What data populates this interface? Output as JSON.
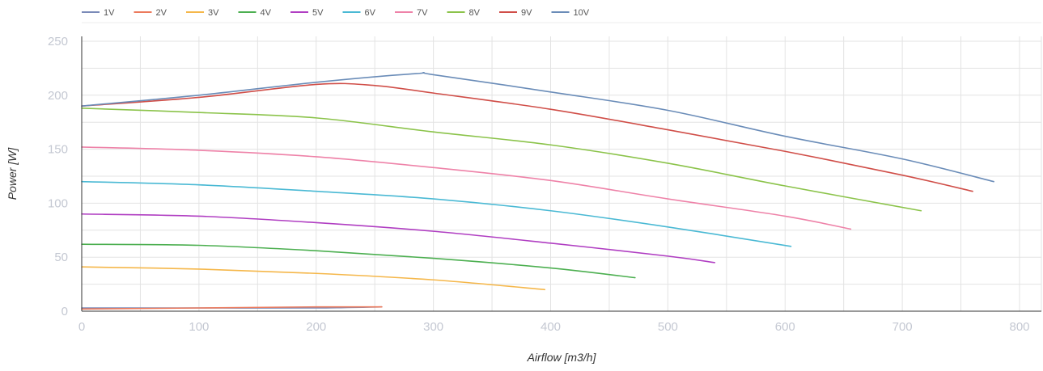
{
  "chart_data": {
    "type": "line",
    "xlabel": "Airflow [m3/h]",
    "ylabel": "Power [W]",
    "xlim": [
      0,
      800
    ],
    "ylim": [
      0,
      250
    ],
    "x_ticks": [
      "0",
      "100",
      "200",
      "300",
      "400",
      "500",
      "600",
      "700",
      "800"
    ],
    "y_ticks": [
      "0",
      "50",
      "100",
      "150",
      "200",
      "250"
    ],
    "grid": true,
    "legend_position": "top-left",
    "series": [
      {
        "name": "1V",
        "color": "#7a8ab8",
        "points": [
          [
            0,
            3
          ],
          [
            100,
            3
          ],
          [
            200,
            3
          ],
          [
            256,
            4
          ]
        ]
      },
      {
        "name": "2V",
        "color": "#ec7a5c",
        "points": [
          [
            0,
            2
          ],
          [
            100,
            3
          ],
          [
            200,
            4
          ],
          [
            256,
            4
          ]
        ]
      },
      {
        "name": "3V",
        "color": "#f5b74a",
        "points": [
          [
            0,
            41
          ],
          [
            100,
            39
          ],
          [
            200,
            35
          ],
          [
            300,
            29
          ],
          [
            395,
            20
          ]
        ]
      },
      {
        "name": "4V",
        "color": "#4caf50",
        "points": [
          [
            0,
            62
          ],
          [
            100,
            61
          ],
          [
            200,
            56
          ],
          [
            300,
            49
          ],
          [
            400,
            40
          ],
          [
            472,
            31
          ]
        ]
      },
      {
        "name": "5V",
        "color": "#b03ec2",
        "points": [
          [
            0,
            90
          ],
          [
            100,
            88
          ],
          [
            200,
            82
          ],
          [
            300,
            74
          ],
          [
            400,
            63
          ],
          [
            500,
            51
          ],
          [
            540,
            45
          ]
        ]
      },
      {
        "name": "6V",
        "color": "#4ab9d4",
        "points": [
          [
            0,
            120
          ],
          [
            100,
            117
          ],
          [
            200,
            111
          ],
          [
            300,
            104
          ],
          [
            400,
            93
          ],
          [
            500,
            78
          ],
          [
            605,
            60
          ]
        ]
      },
      {
        "name": "7V",
        "color": "#ee82a8",
        "points": [
          [
            0,
            152
          ],
          [
            100,
            149
          ],
          [
            200,
            143
          ],
          [
            300,
            133
          ],
          [
            400,
            121
          ],
          [
            500,
            104
          ],
          [
            600,
            88
          ],
          [
            656,
            76
          ]
        ]
      },
      {
        "name": "8V",
        "color": "#8bc34a",
        "points": [
          [
            0,
            188
          ],
          [
            100,
            184
          ],
          [
            200,
            179
          ],
          [
            300,
            166
          ],
          [
            400,
            154
          ],
          [
            500,
            137
          ],
          [
            600,
            116
          ],
          [
            716,
            93
          ]
        ]
      },
      {
        "name": "9V",
        "color": "#d04e48",
        "points": [
          [
            0,
            190
          ],
          [
            100,
            198
          ],
          [
            200,
            210
          ],
          [
            250,
            209
          ],
          [
            300,
            202
          ],
          [
            400,
            187
          ],
          [
            500,
            168
          ],
          [
            600,
            148
          ],
          [
            700,
            126
          ],
          [
            760,
            111
          ]
        ]
      },
      {
        "name": "10V",
        "color": "#6a8cb8",
        "points": [
          [
            0,
            190
          ],
          [
            100,
            200
          ],
          [
            200,
            212
          ],
          [
            285,
            220
          ],
          [
            300,
            219
          ],
          [
            400,
            203
          ],
          [
            500,
            186
          ],
          [
            600,
            162
          ],
          [
            700,
            141
          ],
          [
            778,
            120
          ]
        ]
      }
    ]
  }
}
